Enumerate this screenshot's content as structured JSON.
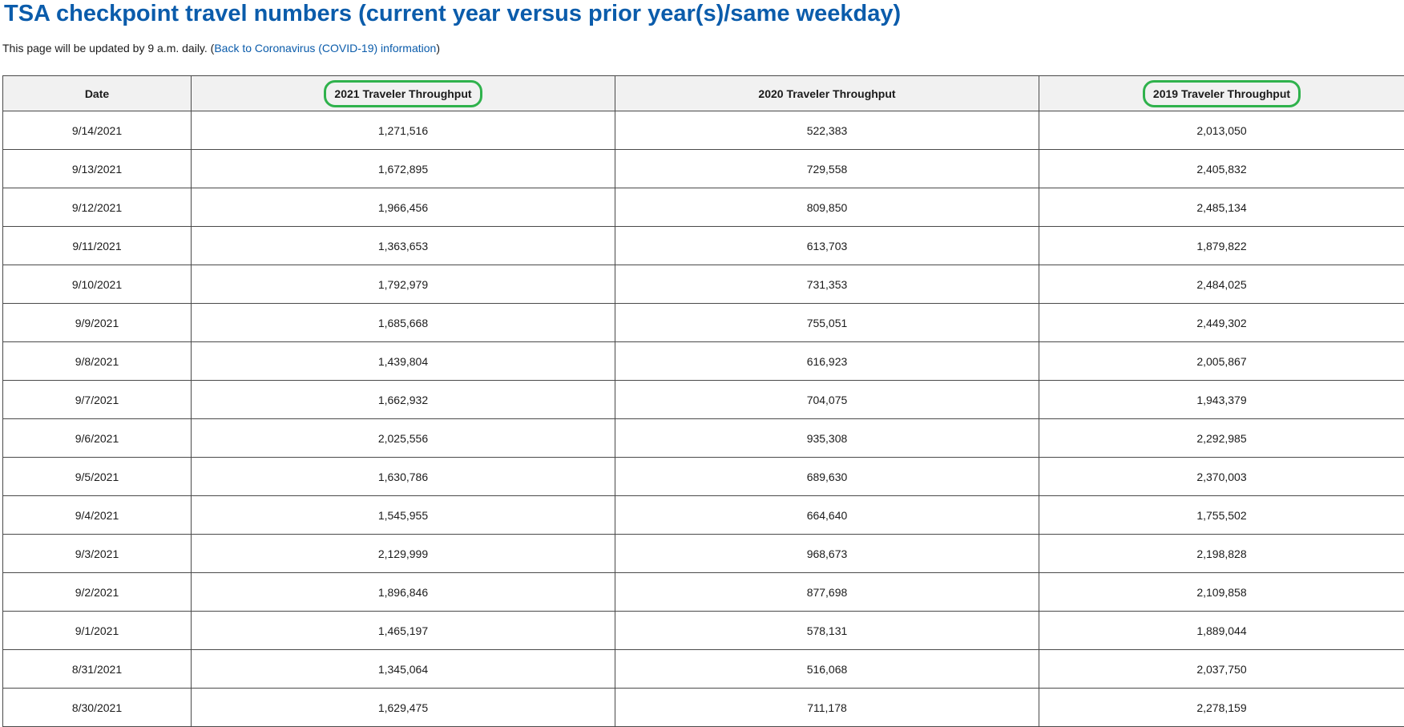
{
  "page": {
    "title": "TSA checkpoint travel numbers (current year versus prior year(s)/same weekday)",
    "intro_prefix": "This page will be updated by 9 a.m. daily. (",
    "intro_link": "Back to Coronavirus (COVID-19) information",
    "intro_suffix": ")"
  },
  "annotations": {
    "highlight_color": "#2fb24c",
    "highlighted_columns": [
      "2021 Traveler Throughput",
      "2019 Traveler Throughput"
    ]
  },
  "table": {
    "headers": {
      "date": "Date",
      "y2021": "2021 Traveler Throughput",
      "y2020": "2020 Traveler Throughput",
      "y2019": "2019 Traveler Throughput"
    },
    "rows": [
      [
        "9/14/2021",
        "1,271,516",
        "522,383",
        "2,013,050"
      ],
      [
        "9/13/2021",
        "1,672,895",
        "729,558",
        "2,405,832"
      ],
      [
        "9/12/2021",
        "1,966,456",
        "809,850",
        "2,485,134"
      ],
      [
        "9/11/2021",
        "1,363,653",
        "613,703",
        "1,879,822"
      ],
      [
        "9/10/2021",
        "1,792,979",
        "731,353",
        "2,484,025"
      ],
      [
        "9/9/2021",
        "1,685,668",
        "755,051",
        "2,449,302"
      ],
      [
        "9/8/2021",
        "1,439,804",
        "616,923",
        "2,005,867"
      ],
      [
        "9/7/2021",
        "1,662,932",
        "704,075",
        "1,943,379"
      ],
      [
        "9/6/2021",
        "2,025,556",
        "935,308",
        "2,292,985"
      ],
      [
        "9/5/2021",
        "1,630,786",
        "689,630",
        "2,370,003"
      ],
      [
        "9/4/2021",
        "1,545,955",
        "664,640",
        "1,755,502"
      ],
      [
        "9/3/2021",
        "2,129,999",
        "968,673",
        "2,198,828"
      ],
      [
        "9/2/2021",
        "1,896,846",
        "877,698",
        "2,109,858"
      ],
      [
        "9/1/2021",
        "1,465,197",
        "578,131",
        "1,889,044"
      ],
      [
        "8/31/2021",
        "1,345,064",
        "516,068",
        "2,037,750"
      ],
      [
        "8/30/2021",
        "1,629,475",
        "711,178",
        "2,278,159"
      ]
    ]
  }
}
